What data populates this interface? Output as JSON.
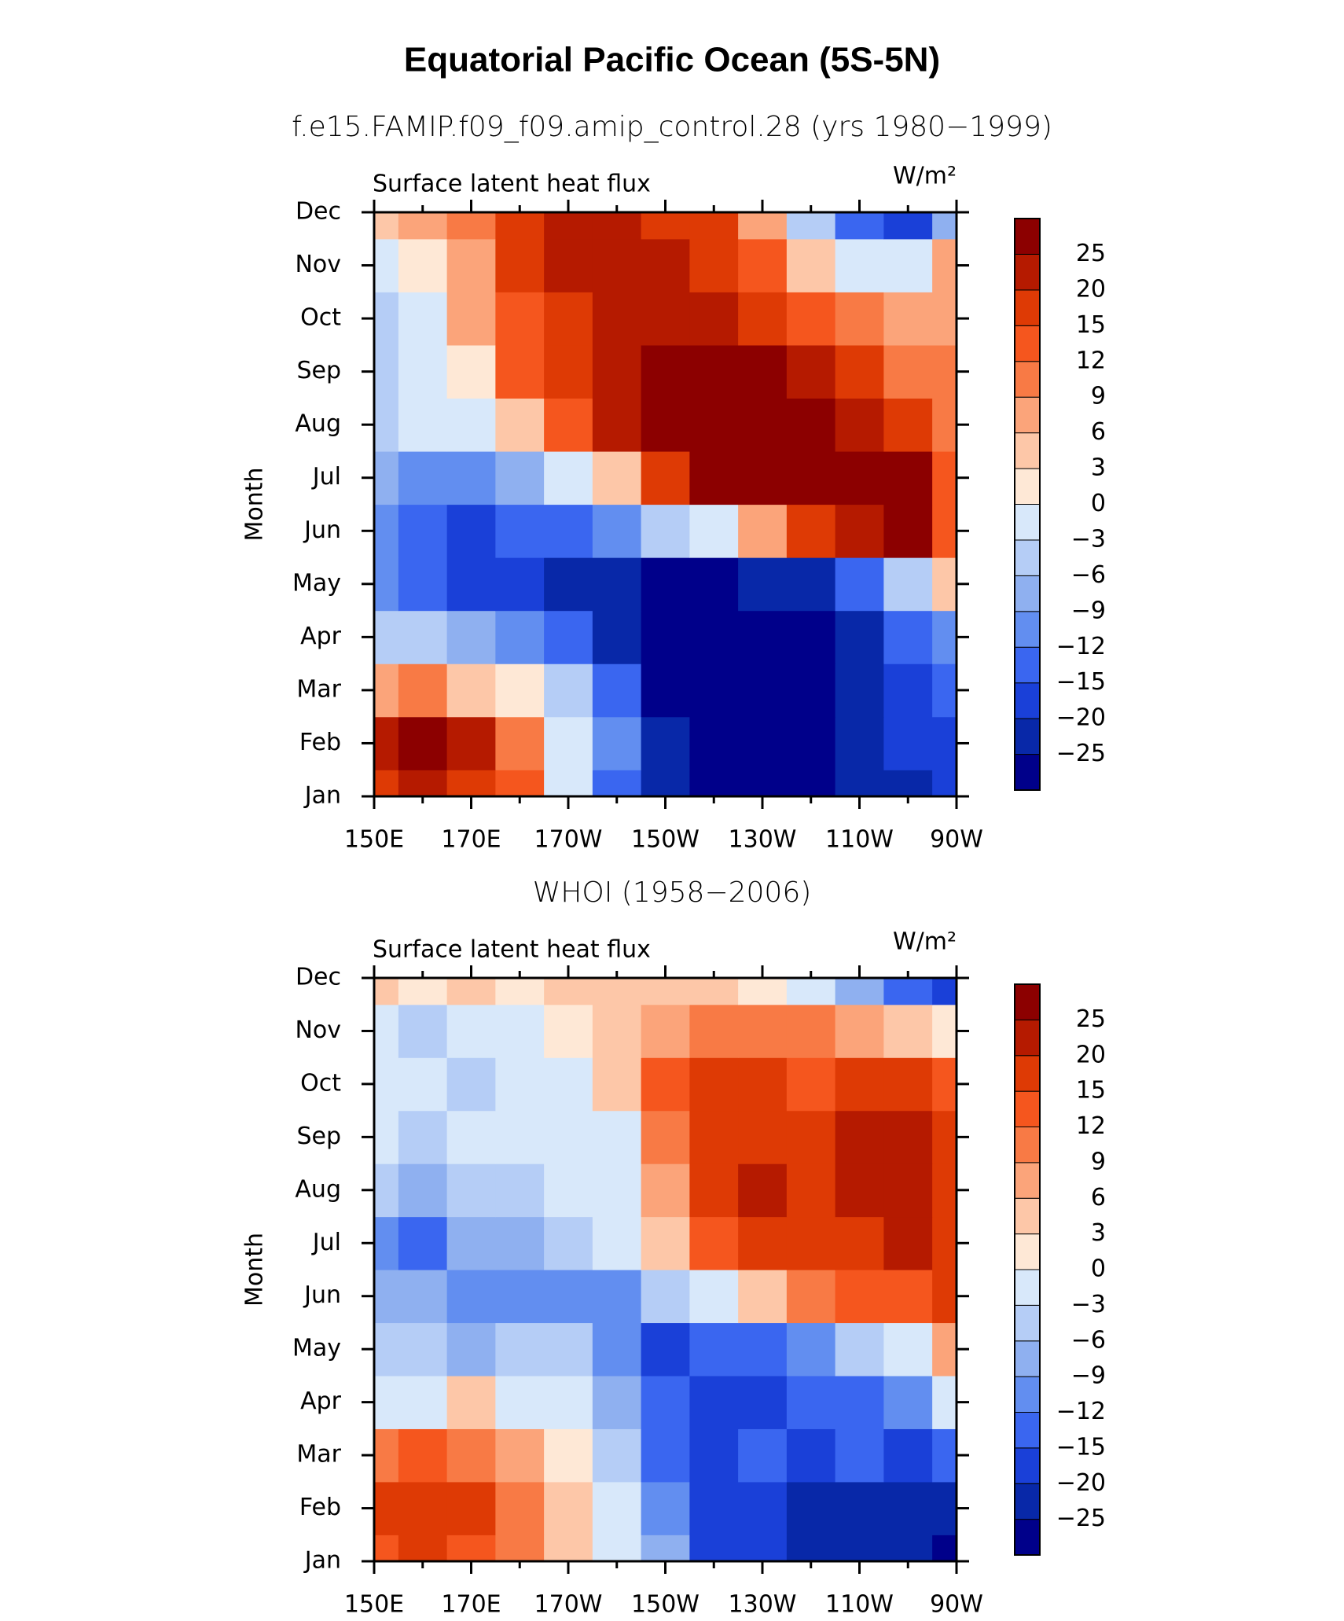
{
  "page_title": "Equatorial Pacific Ocean (5S-5N)",
  "chart_data": [
    {
      "type": "heatmap",
      "title": "f.e15.FAMIP.f09_f09.amip_control.28 (yrs 1980−1999)",
      "left_label": "Surface latent heat flux",
      "right_label": "W/m²",
      "ylabel": "Month",
      "categories": [
        "Jan",
        "Feb",
        "Mar",
        "Apr",
        "May",
        "Jun",
        "Jul",
        "Aug",
        "Sep",
        "Oct",
        "Nov",
        "Dec"
      ],
      "x": [
        150,
        160,
        170,
        180,
        190,
        200,
        210,
        220,
        230,
        240,
        250,
        260,
        270
      ],
      "xlim": [
        150,
        270
      ],
      "xticks": [
        {
          "value": 150,
          "label": "150E"
        },
        {
          "value": 170,
          "label": "170E"
        },
        {
          "value": 190,
          "label": "170W"
        },
        {
          "value": 210,
          "label": "150W"
        },
        {
          "value": 230,
          "label": "130W"
        },
        {
          "value": 250,
          "label": "110W"
        },
        {
          "value": 270,
          "label": "90W"
        }
      ],
      "xticks_minor": [
        160,
        180,
        200,
        220,
        240,
        260
      ],
      "levels": [
        -25,
        -20,
        -15,
        -12,
        -9,
        -6,
        -3,
        0,
        3,
        6,
        9,
        12,
        15,
        20,
        25
      ],
      "level_labels": [
        "−25",
        "−20",
        "−15",
        "−12",
        "−9",
        "−6",
        "−3",
        "0",
        "3",
        "6",
        "9",
        "12",
        "15",
        "20",
        "25"
      ],
      "colors": [
        "#00008a",
        "#0828a8",
        "#1a40d8",
        "#3a66f0",
        "#628ef0",
        "#8fb0f0",
        "#b5cdf6",
        "#d8e8fa",
        "#fee8d6",
        "#fdc7a8",
        "#fba47a",
        "#f87a45",
        "#f5561e",
        "#de3a05",
        "#b51a00",
        "#8c0000"
      ],
      "z": [
        [
          18,
          20,
          16,
          12,
          -3,
          -15,
          -25,
          -27,
          -27,
          -27,
          -22,
          -22,
          -18
        ],
        [
          22,
          26,
          20,
          10,
          -2,
          -12,
          -25,
          -28,
          -28,
          -28,
          -22,
          -20,
          -18
        ],
        [
          8,
          10,
          5,
          0,
          -6,
          -15,
          -26,
          -28,
          -28,
          -28,
          -24,
          -18,
          -15
        ],
        [
          -6,
          -5,
          -9,
          -12,
          -15,
          -22,
          -27,
          -28,
          -28,
          -27,
          -22,
          -15,
          -12
        ],
        [
          -12,
          -15,
          -18,
          -20,
          -22,
          -25,
          -26,
          -26,
          -25,
          -22,
          -15,
          -6,
          3
        ],
        [
          -12,
          -15,
          -16,
          -15,
          -15,
          -12,
          -6,
          -1,
          6,
          15,
          20,
          25,
          12
        ],
        [
          -9,
          -12,
          -12,
          -9,
          -3,
          3,
          15,
          26,
          28,
          28,
          28,
          26,
          12
        ],
        [
          -6,
          -3,
          -1,
          3,
          12,
          20,
          28,
          28,
          28,
          26,
          20,
          15,
          10
        ],
        [
          -6,
          -3,
          2,
          12,
          18,
          22,
          28,
          28,
          26,
          20,
          15,
          9,
          9
        ],
        [
          -6,
          -1,
          6,
          12,
          18,
          20,
          22,
          20,
          18,
          12,
          9,
          6,
          8
        ],
        [
          -3,
          2,
          6,
          15,
          20,
          22,
          20,
          18,
          12,
          3,
          -3,
          -3,
          6
        ],
        [
          3,
          6,
          9,
          15,
          20,
          22,
          18,
          15,
          6,
          -6,
          -15,
          -18,
          -9
        ]
      ]
    },
    {
      "type": "heatmap",
      "title": "WHOI (1958−2006)",
      "left_label": "Surface latent heat flux",
      "right_label": "W/m²",
      "ylabel": "Month",
      "categories": [
        "Jan",
        "Feb",
        "Mar",
        "Apr",
        "May",
        "Jun",
        "Jul",
        "Aug",
        "Sep",
        "Oct",
        "Nov",
        "Dec"
      ],
      "x": [
        150,
        160,
        170,
        180,
        190,
        200,
        210,
        220,
        230,
        240,
        250,
        260,
        270
      ],
      "xlim": [
        150,
        270
      ],
      "xticks": [
        {
          "value": 150,
          "label": "150E"
        },
        {
          "value": 170,
          "label": "170E"
        },
        {
          "value": 190,
          "label": "170W"
        },
        {
          "value": 210,
          "label": "150W"
        },
        {
          "value": 230,
          "label": "130W"
        },
        {
          "value": 250,
          "label": "110W"
        },
        {
          "value": 270,
          "label": "90W"
        }
      ],
      "xticks_minor": [
        160,
        180,
        200,
        220,
        240,
        260
      ],
      "levels": [
        -25,
        -20,
        -15,
        -12,
        -9,
        -6,
        -3,
        0,
        3,
        6,
        9,
        12,
        15,
        20,
        25
      ],
      "level_labels": [
        "−25",
        "−20",
        "−15",
        "−12",
        "−9",
        "−6",
        "−3",
        "0",
        "3",
        "6",
        "9",
        "12",
        "15",
        "20",
        "25"
      ],
      "colors": [
        "#00008a",
        "#0828a8",
        "#1a40d8",
        "#3a66f0",
        "#628ef0",
        "#8fb0f0",
        "#b5cdf6",
        "#d8e8fa",
        "#fee8d6",
        "#fdc7a8",
        "#fba47a",
        "#f87a45",
        "#f5561e",
        "#de3a05",
        "#b51a00",
        "#8c0000"
      ],
      "z": [
        [
          12,
          15,
          12,
          9,
          3,
          -3,
          -9,
          -18,
          -20,
          -22,
          -22,
          -25,
          -27
        ],
        [
          15,
          18,
          18,
          9,
          3,
          -3,
          -12,
          -18,
          -20,
          -22,
          -25,
          -25,
          -22
        ],
        [
          9,
          12,
          9,
          6,
          1,
          -6,
          -15,
          -20,
          -15,
          -18,
          -15,
          -18,
          -15
        ],
        [
          -3,
          -1,
          3,
          -1,
          -3,
          -9,
          -15,
          -18,
          -18,
          -15,
          -15,
          -12,
          -3
        ],
        [
          -6,
          -6,
          -9,
          -6,
          -6,
          -12,
          -18,
          -15,
          -15,
          -12,
          -6,
          -1,
          6
        ],
        [
          -9,
          -9,
          -12,
          -12,
          -12,
          -12,
          -6,
          -3,
          3,
          9,
          12,
          12,
          15
        ],
        [
          -12,
          -15,
          -9,
          -9,
          -6,
          -3,
          3,
          12,
          18,
          15,
          18,
          20,
          15
        ],
        [
          -6,
          -9,
          -6,
          -6,
          -3,
          -1,
          6,
          15,
          20,
          15,
          20,
          20,
          18
        ],
        [
          -3,
          -6,
          -3,
          -3,
          -3,
          -1,
          9,
          15,
          18,
          15,
          20,
          22,
          18
        ],
        [
          -3,
          -3,
          -6,
          -3,
          -3,
          3,
          12,
          15,
          15,
          12,
          15,
          15,
          12
        ],
        [
          -3,
          -6,
          -3,
          -3,
          1,
          3,
          6,
          9,
          9,
          9,
          6,
          3,
          1
        ],
        [
          3,
          1,
          3,
          1,
          3,
          3,
          3,
          3,
          1,
          -3,
          -9,
          -15,
          -20
        ]
      ]
    }
  ]
}
